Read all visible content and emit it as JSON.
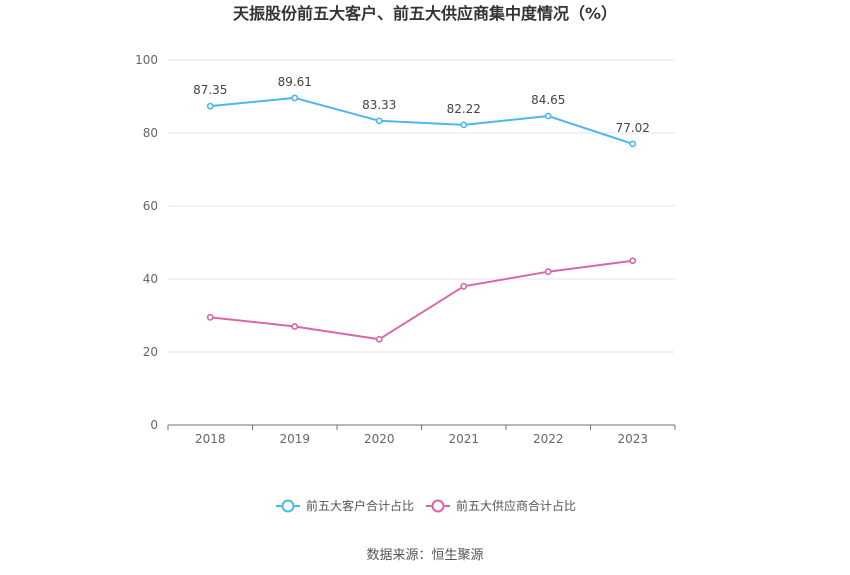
{
  "chart_data": {
    "type": "line",
    "title": "天振股份前五大客户、前五大供应商集中度情况（%）",
    "categories": [
      "2018",
      "2019",
      "2020",
      "2021",
      "2022",
      "2023"
    ],
    "series": [
      {
        "name": "前五大客户合计占比",
        "values": [
          87.35,
          89.61,
          83.33,
          82.22,
          84.65,
          77.02
        ],
        "labels": [
          "87.35",
          "89.61",
          "83.33",
          "82.22",
          "84.65",
          "77.02"
        ],
        "color": "#4db6f0"
      },
      {
        "name": "前五大供应商合计占比",
        "values": [
          29.5,
          27.0,
          23.5,
          38.0,
          42.0,
          45.0
        ],
        "labels": [],
        "color": "#d966a8"
      }
    ],
    "yticks": [
      "0",
      "20",
      "40",
      "60",
      "80",
      "100"
    ],
    "ylim": [
      0,
      100
    ],
    "grid": true,
    "legend_position": "bottom"
  },
  "source": "数据来源：恒生聚源"
}
